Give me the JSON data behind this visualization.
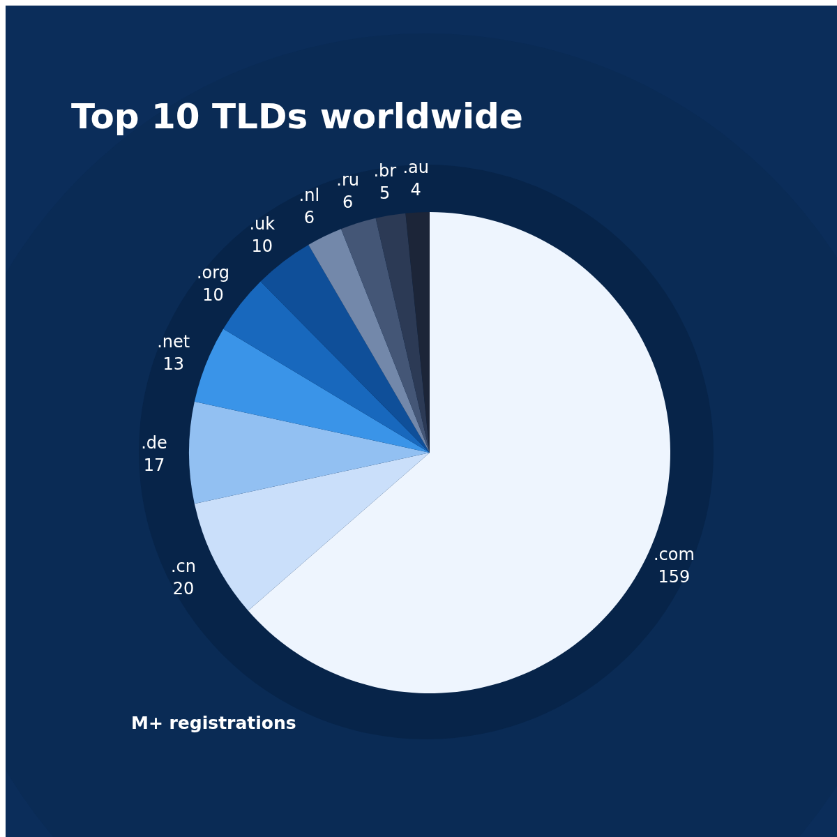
{
  "chart_data": {
    "type": "pie",
    "title": "Top 10 TLDs worldwide",
    "categories": [
      ".com",
      ".cn",
      ".de",
      ".net",
      ".org",
      ".uk",
      ".nl",
      ".ru",
      ".br",
      ".au"
    ],
    "values": [
      159,
      20,
      17,
      13,
      10,
      10,
      6,
      6,
      5,
      4
    ],
    "colors": [
      "#eef5fe",
      "#cadffa",
      "#92c0f2",
      "#3a94e8",
      "#1868bd",
      "#0f4f99",
      "#7388aa",
      "#445676",
      "#2c3a55",
      "#1c2538"
    ],
    "data_labels": true,
    "annotations": [
      "M+ registrations"
    ]
  }
}
